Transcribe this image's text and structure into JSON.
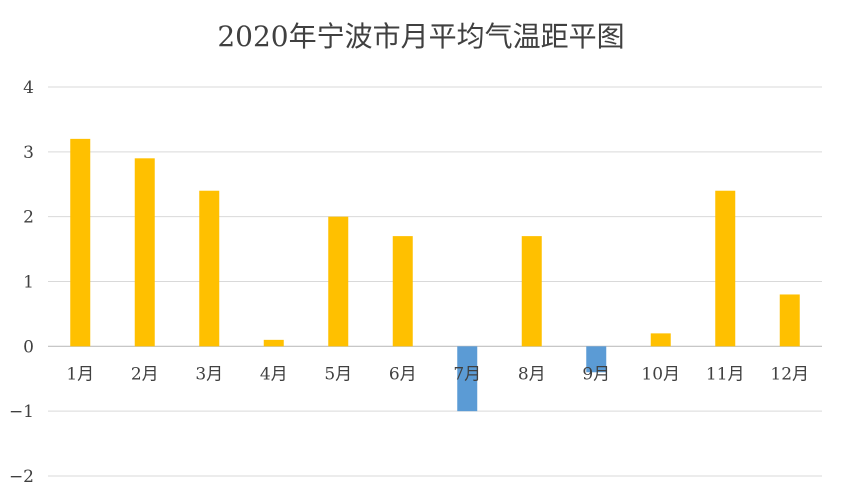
{
  "chart_data": {
    "type": "bar",
    "title": "2020年宁波市月平均气温距平图",
    "xlabel": "",
    "ylabel": "",
    "categories": [
      "1月",
      "2月",
      "3月",
      "4月",
      "5月",
      "6月",
      "7月",
      "8月",
      "9月",
      "10月",
      "11月",
      "12月"
    ],
    "values": [
      3.2,
      2.9,
      2.4,
      0.1,
      2.0,
      1.7,
      -1.0,
      1.7,
      -0.4,
      0.2,
      2.4,
      0.8
    ],
    "ylim": [
      -2,
      4
    ],
    "yticks": [
      4,
      3,
      2,
      1,
      0,
      -1,
      -2
    ],
    "grid": true,
    "legend": "none",
    "colors": {
      "positive": "#FFC000",
      "negative": "#5B9BD5",
      "grid": "#D9D9D9",
      "text": "#404040"
    }
  }
}
